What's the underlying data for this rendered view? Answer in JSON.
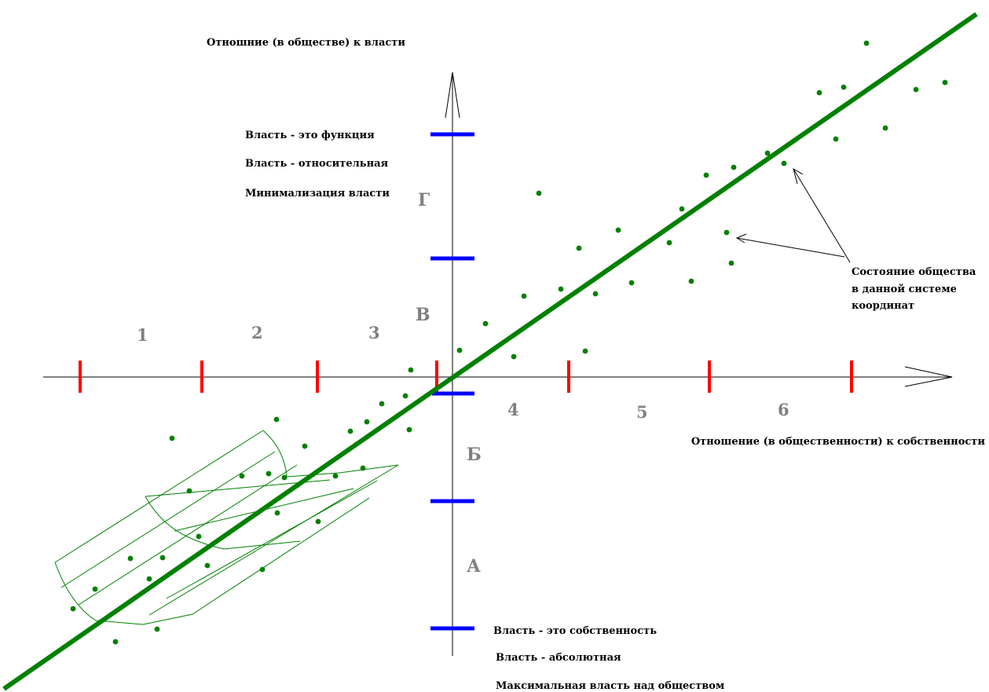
{
  "title_vertical_axis": "Отношние (в обществе) к власти",
  "title_horizontal_axis": "Отношение (в общественности) к собственности",
  "top_labels": [
    "Власть - это  функция",
    "Власть - относительная",
    "Минимализация власти"
  ],
  "bottom_labels": [
    "Власть - это собственность",
    "Власть - абсолютная",
    "Максимальная власть над обществом"
  ],
  "callout": [
    "Состояние общества",
    "в данной системе",
    "координат"
  ],
  "x_segments": [
    "1",
    "2",
    "3",
    "4",
    "5",
    "6"
  ],
  "y_segments": [
    "Г",
    "В",
    "Б",
    "А"
  ],
  "colors": {
    "axis": "#000000",
    "red_ticks": "#ff0000",
    "blue_ticks": "#0000ff",
    "trend": "#008000",
    "dots": "#008000",
    "grid": "#008000",
    "segment_labels": "#808080"
  }
}
